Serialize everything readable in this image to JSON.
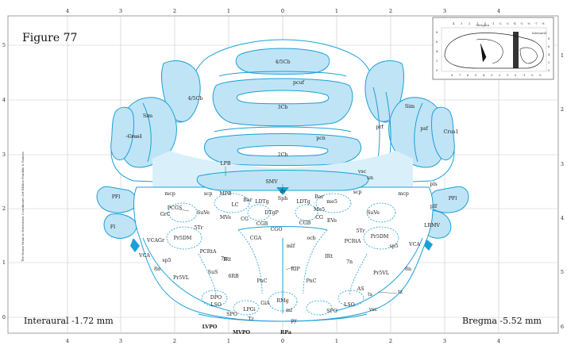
{
  "figure": {
    "title": "Figure 77",
    "interaural": "Interaural -1.72 mm",
    "bregma": "Bregma -5.52 mm",
    "side_credit": "The Mouse Brain in Stereotaxic Coordinates 3rd Edition  Franklin & Paxinos"
  },
  "axes": {
    "top_ticks": [
      "4",
      "3",
      "2",
      "1",
      "0",
      "1",
      "2",
      "3",
      "4"
    ],
    "bottom_ticks": [
      "4",
      "3",
      "2",
      "1",
      "0",
      "1",
      "2",
      "3",
      "4"
    ],
    "left_ticks": [
      "5",
      "4",
      "3",
      "2",
      "1",
      "0"
    ],
    "right_ticks": [
      "1",
      "2",
      "3",
      "4",
      "5",
      "6"
    ]
  },
  "inset": {
    "label_bregma": "Bregma",
    "label_interaural": "Interaural",
    "top_ticks": [
      "4",
      "3",
      "2",
      "1",
      "0",
      "-1",
      "-2",
      "-3",
      "-4",
      "-5",
      "-6",
      "-7",
      "-8"
    ],
    "bottom_ticks": [
      "8",
      "7",
      "6",
      "5",
      "4",
      "3",
      "2",
      "1",
      "0",
      "-1",
      "-2",
      "-3"
    ],
    "left_ticks": [
      "8",
      "6",
      "4",
      "2",
      "0"
    ],
    "right_ticks": [
      "8",
      "6",
      "4",
      "2",
      "0"
    ]
  },
  "labels": {
    "c45_top": "4/5Cb",
    "pcuf": "pcuf",
    "c45_left": "4/5Cb",
    "c3": "3Cb",
    "pcn": "pcn",
    "c2": "2Cb",
    "sim_l": "Sim",
    "sim_r": "Sim",
    "crus1_l": "Crus1",
    "crus1_r": "Crus1",
    "prf": "prf",
    "psf": "psf",
    "pfl_l": "PFl",
    "pfl_r": "PFl",
    "fl_l": "Fl",
    "lrmv": "LRMV",
    "pls": "pls",
    "plf": "plf",
    "mcp_l": "mcp",
    "mcp_r": "mcp",
    "lpb": "LPB",
    "smv": "SMV",
    "vsc_top": "vsc",
    "un": "un",
    "scp_l": "scp",
    "scp_r": "scp",
    "mpb": "MPB",
    "bar_l": "Bar",
    "ldtg_l": "LDTg",
    "sph": "Sph",
    "ldtg_r": "LDTg",
    "bar_r": "Bar",
    "me5": "me5",
    "mes": "Me5",
    "lc": "LC",
    "dtgp": "DTgP",
    "pcgs": "PCGS",
    "suve_l": "SuVe",
    "suve_r": "SuVe",
    "grc": "GrC",
    "mve": "MVe",
    "cg_l": "CG",
    "cgb_l": "CGB",
    "cgb_r": "CGB",
    "cg_r": "CG",
    "eve": "EVe",
    "tr5_l": "5Tr",
    "tr5_r": "5Tr",
    "cgo": "CGO",
    "cga": "CGA",
    "ocb": "ocb",
    "pr5dm_l": "Pr5DM",
    "pr5dm_r": "Pr5DM",
    "vcagr": "VCAGr",
    "vca_l": "VCA",
    "vca_r": "VCA",
    "pcrta_l": "PCRtA",
    "pcrta_r": "PCRtA",
    "mlf": "mlf",
    "sp5_l": "sp5",
    "sp5_r": "sp5",
    "irt_l": "IRt",
    "irt_r": "IRt",
    "n8_l": "8n",
    "n8_r": "8n",
    "n7_l": "7n",
    "n7_r": "7n",
    "rip": "RIP",
    "sus": "SuS",
    "pr5vl_l": "Pr5VL",
    "pr5vl_r": "Pr5VL",
    "rb6": "6RB",
    "pnc_l": "PnC",
    "pnc_r": "PnC",
    "as": "AS",
    "ts": "ts",
    "tz_small": "tz",
    "dpo": "DPO",
    "lso_l": "LSO",
    "lso_r": "LSO",
    "rmg": "RMg",
    "gia": "GiA",
    "lpgi": "LPGi",
    "spo_l": "SPO",
    "spo_r": "SPO",
    "mi": "ml",
    "tz": "Tz",
    "py": "py",
    "vsc_bot": "vsc",
    "lvpo": "LVPO",
    "mvpo": "MVPO",
    "rpa": "RPa",
    "dv": "dv"
  }
}
